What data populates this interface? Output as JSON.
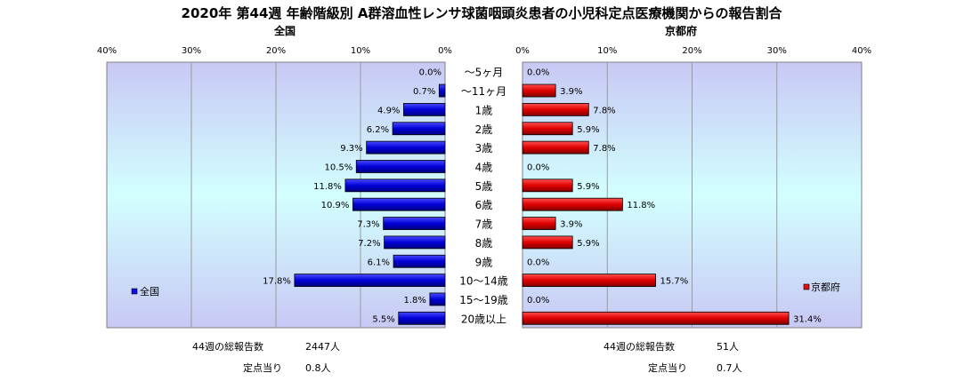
{
  "chart_data": {
    "type": "bar",
    "title": "2020年 第44週 年齢階級別 A群溶血性レンサ球菌咽頭炎患者の小児科定点医療機関からの報告割合",
    "categories": [
      "～5ヶ月",
      "～11ヶ月",
      "1歳",
      "2歳",
      "3歳",
      "4歳",
      "5歳",
      "6歳",
      "7歳",
      "8歳",
      "9歳",
      "10～14歳",
      "15～19歳",
      "20歳以上"
    ],
    "xlim": [
      0,
      40
    ],
    "tick_labels": [
      "0%",
      "10%",
      "20%",
      "30%",
      "40%"
    ],
    "panels": [
      {
        "subtitle": "全国",
        "series": [
          {
            "name": "全国",
            "values": [
              0.0,
              0.7,
              4.9,
              6.2,
              9.3,
              10.5,
              11.8,
              10.9,
              7.3,
              7.2,
              6.1,
              17.8,
              1.8,
              5.5
            ],
            "labels": [
              "0.0%",
              "0.7%",
              "4.9%",
              "6.2%",
              "9.3%",
              "10.5%",
              "11.8%",
              "10.9%",
              "7.3%",
              "7.2%",
              "6.1%",
              "17.8%",
              "1.8%",
              "5.5%"
            ]
          }
        ],
        "color": "#1010e8",
        "legend_position": "bottom-left",
        "footer": {
          "total_label": "44週の総報告数",
          "total_value": "2447人",
          "per_label": "定点当り",
          "per_value": "0.8人"
        }
      },
      {
        "subtitle": "京都府",
        "series": [
          {
            "name": "京都府",
            "values": [
              0.0,
              3.9,
              7.8,
              5.9,
              7.8,
              0.0,
              5.9,
              11.8,
              3.9,
              5.9,
              0.0,
              15.7,
              0.0,
              31.4
            ],
            "labels": [
              "0.0%",
              "3.9%",
              "7.8%",
              "5.9%",
              "7.8%",
              "0.0%",
              "5.9%",
              "11.8%",
              "3.9%",
              "5.9%",
              "0.0%",
              "15.7%",
              "0.0%",
              "31.4%"
            ]
          }
        ],
        "color": "#e01010",
        "legend_position": "bottom-right",
        "footer": {
          "total_label": "44週の総報告数",
          "total_value": "51人",
          "per_label": "定点当り",
          "per_value": "0.7人"
        }
      }
    ]
  }
}
